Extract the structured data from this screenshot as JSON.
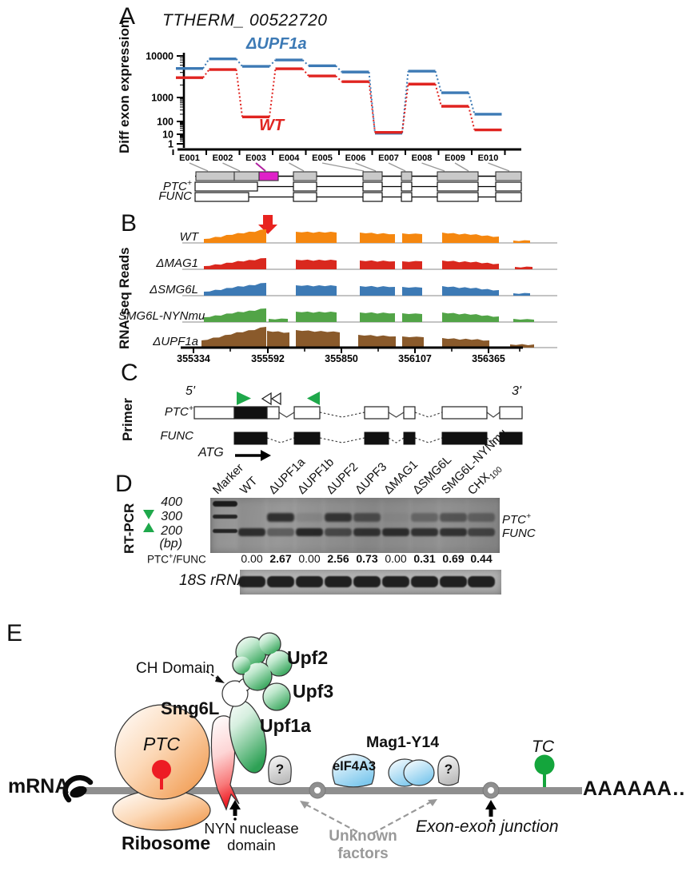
{
  "figure_bg": "#ffffff",
  "panelA": {
    "label": "A",
    "title": "TTHERM_ 00522720",
    "y_axis_label": "Diff exon expression",
    "chart_data": {
      "type": "step-line",
      "y_scale": "log",
      "ylim": [
        1,
        10000
      ],
      "y_ticks": [
        "10000",
        "1000",
        "100",
        "10",
        "1"
      ],
      "categories": [
        "E001",
        "E002",
        "E003",
        "E004",
        "E005",
        "E006",
        "E007",
        "E008",
        "E009",
        "E010"
      ],
      "series": [
        {
          "name": "ΔUPF1a",
          "color": "#3d7ab5",
          "values": [
            5000,
            8500,
            5600,
            8000,
            5800,
            4100,
            12,
            4300,
            1300,
            200
          ]
        },
        {
          "name": "WT",
          "color": "#e02420",
          "values": [
            3000,
            4700,
            155,
            4900,
            3300,
            2400,
            14,
            2100,
            430,
            22
          ]
        }
      ]
    },
    "gene_model": {
      "row_labels": [
        "PTC⁺",
        "FUNC"
      ],
      "highlight_exon": "E003",
      "highlight_color": "#df21c8",
      "exon_fill": "#c9c9c9"
    }
  },
  "panelB": {
    "label": "B",
    "y_axis_label": "RNA-seq Reads",
    "arrow_color": "#e8231f",
    "x_ticks": [
      "355334",
      "355592",
      "355850",
      "356107",
      "356365"
    ],
    "tracks": [
      {
        "label": "WT",
        "color": "#f5870f",
        "baseline": 304,
        "blocks": [
          [
            255,
            333,
            5,
            17
          ],
          [
            370,
            421,
            14,
            13
          ],
          [
            450,
            494,
            13,
            11
          ],
          [
            503,
            528,
            12,
            11
          ],
          [
            553,
            624,
            13,
            8
          ],
          [
            642,
            663,
            3,
            3
          ]
        ]
      },
      {
        "label": "ΔMAG1",
        "color": "#d9281e",
        "baseline": 337,
        "blocks": [
          [
            255,
            333,
            4,
            14
          ],
          [
            370,
            421,
            12,
            11
          ],
          [
            450,
            494,
            11,
            10
          ],
          [
            503,
            528,
            10,
            10
          ],
          [
            553,
            624,
            11,
            7
          ],
          [
            644,
            666,
            3,
            3
          ]
        ]
      },
      {
        "label": "ΔSMG6L",
        "color": "#3d7ab5",
        "baseline": 370,
        "blocks": [
          [
            255,
            333,
            5,
            16
          ],
          [
            370,
            421,
            13,
            12
          ],
          [
            450,
            494,
            12,
            11
          ],
          [
            503,
            528,
            11,
            10
          ],
          [
            553,
            624,
            12,
            7
          ],
          [
            642,
            663,
            3,
            3
          ]
        ]
      },
      {
        "label": "SMG6L-NYNmu",
        "color": "#52a447",
        "baseline": 403,
        "blocks": [
          [
            255,
            333,
            6,
            17
          ],
          [
            336,
            360,
            4,
            4
          ],
          [
            370,
            421,
            13,
            12
          ],
          [
            450,
            494,
            12,
            11
          ],
          [
            503,
            528,
            11,
            10
          ],
          [
            553,
            624,
            12,
            7
          ],
          [
            642,
            668,
            4,
            3
          ]
        ]
      },
      {
        "label": "ΔUPF1a",
        "color": "#8a5a2b",
        "baseline": 435,
        "blocks": [
          [
            252,
            333,
            9,
            26
          ],
          [
            334,
            362,
            21,
            19
          ],
          [
            370,
            425,
            22,
            19
          ],
          [
            448,
            495,
            16,
            14
          ],
          [
            503,
            530,
            14,
            13
          ],
          [
            553,
            612,
            12,
            9
          ],
          [
            638,
            668,
            4,
            4
          ]
        ]
      }
    ]
  },
  "panelC": {
    "label": "C",
    "y_axis_label": "Primer",
    "five_prime": "5'",
    "three_prime": "3'",
    "row_labels": [
      "PTC⁺",
      "FUNC"
    ],
    "start_codon": "ATG",
    "primer_color": "#1fa84b"
  },
  "panelD": {
    "label": "D",
    "y_axis_label": "RT-PCR",
    "lanes": [
      "Marker",
      "WT",
      "ΔUPF1a",
      "ΔUPF1b",
      "ΔUPF2",
      "ΔUPF3",
      "ΔMAG1",
      "ΔSMG6L",
      "SMG6L-NYNmu",
      "CHX₁₀₀"
    ],
    "size_markers": [
      "400",
      "300",
      "200",
      "(bp)"
    ],
    "band_labels": [
      "PTC⁺",
      "FUNC"
    ],
    "ratio_label": "PTC⁺/FUNC",
    "ratios": [
      "0.00",
      "2.67",
      "0.00",
      "2.56",
      "0.73",
      "0.00",
      "0.31",
      "0.69",
      "0.44"
    ],
    "ptc_band_intensity": [
      0,
      0.9,
      0.12,
      0.85,
      0.62,
      0.05,
      0.38,
      0.55,
      0.42
    ],
    "func_band_intensity": [
      0.85,
      0.45,
      0.9,
      0.62,
      0.8,
      0.85,
      0.8,
      0.8,
      0.65
    ],
    "loading_control": "18S rRNA",
    "marker_color": "#1fa84b"
  },
  "panelE": {
    "label": "E",
    "labels": {
      "ch_domain": "CH Domain",
      "smg6l": "Smg6L",
      "upf2": "Upf2",
      "upf3": "Upf3",
      "upf1a": "Upf1a",
      "ptc": "PTC",
      "mrna": "mRNA",
      "ribosome": "Ribosome",
      "nyn_line1": "NYN nuclease",
      "nyn_line2": "domain",
      "question_mark": "?",
      "eif4a3": "eIF4A3",
      "mag1_y14": "Mag1-Y14",
      "unknown_line1": "Unknown",
      "unknown_line2": "factors",
      "exon_junction": "Exon-exon junction",
      "tc": "TC",
      "poly_a": "AAAAAA….."
    },
    "colors": {
      "mrna_line": "#8f8f8f",
      "ptc_red": "#ed1c24",
      "tc_green": "#14a53c",
      "ribosome_orange": "#ef9140",
      "nmd_green": "#3aa85e",
      "ejc_blue": "#7ec8ed",
      "unknown_gray": "#999999"
    }
  }
}
